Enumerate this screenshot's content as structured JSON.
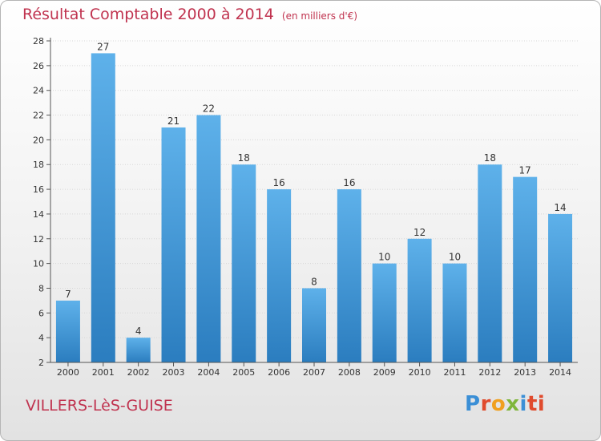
{
  "title": "Résultat Comptable 2000 à 2014",
  "subtitle": "(en milliers d'€)",
  "town": "VILLERS-LèS-GUISE",
  "logo": {
    "text": "Proxiti",
    "letters": [
      "P",
      "r",
      "o",
      "x",
      "i",
      "ti"
    ]
  },
  "colors": {
    "title": "#c0334f",
    "bar_top": "#5eb1ea",
    "bar_bottom": "#2b7dbf",
    "axis": "#555555",
    "grid": "#d7d7d7"
  },
  "chart_data": {
    "type": "bar",
    "title": "Résultat Comptable 2000 à 2014",
    "subtitle": "(en milliers d'€)",
    "categories": [
      "2000",
      "2001",
      "2002",
      "2003",
      "2004",
      "2005",
      "2006",
      "2007",
      "2008",
      "2009",
      "2010",
      "2011",
      "2012",
      "2013",
      "2014"
    ],
    "values": [
      7,
      27,
      4,
      21,
      22,
      18,
      16,
      8,
      16,
      10,
      12,
      10,
      18,
      17,
      14
    ],
    "ylim": [
      2,
      28
    ],
    "yticks": [
      2,
      4,
      6,
      8,
      10,
      12,
      14,
      16,
      18,
      20,
      22,
      24,
      26,
      28
    ],
    "grid": true,
    "xlabel": "",
    "ylabel": ""
  }
}
